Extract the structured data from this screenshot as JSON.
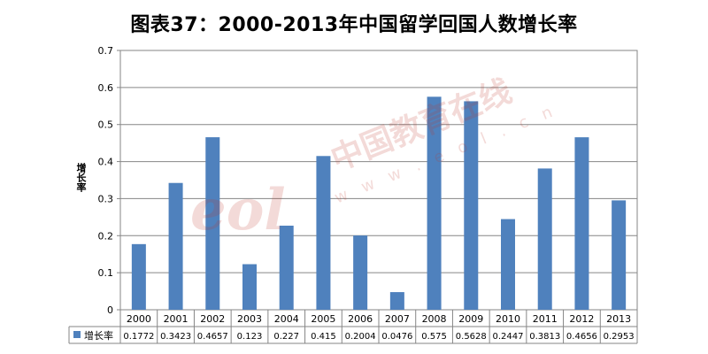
{
  "chart_data": {
    "type": "bar",
    "title": "图表37：2000-2013年中国留学回国人数增长率",
    "ylabel": "增长率",
    "ylim": [
      0,
      0.7
    ],
    "yticks": [
      "0",
      "0.1",
      "0.2",
      "0.3",
      "0.4",
      "0.5",
      "0.6",
      "0.7"
    ],
    "grid": true,
    "categories": [
      "2000",
      "2001",
      "2002",
      "2003",
      "2004",
      "2005",
      "2006",
      "2007",
      "2008",
      "2009",
      "2010",
      "2011",
      "2012",
      "2013"
    ],
    "series": [
      {
        "name": "增长率",
        "color": "#4f81bd",
        "values": [
          0.1772,
          0.3423,
          0.4657,
          0.123,
          0.227,
          0.415,
          0.2004,
          0.0476,
          0.575,
          0.5628,
          0.2447,
          0.3813,
          0.4656,
          0.2953
        ],
        "labels": [
          "0.1772",
          "0.3423",
          "0.4657",
          "0.123",
          "0.227",
          "0.415",
          "0.2004",
          "0.0476",
          "0.575",
          "0.5628",
          "0.2447",
          "0.3813",
          "0.4656",
          "0.2953"
        ]
      }
    ]
  },
  "watermark": {
    "logo": "eol",
    "site_cn": "中国教育在线",
    "url": "w w w . e o l . c n"
  }
}
